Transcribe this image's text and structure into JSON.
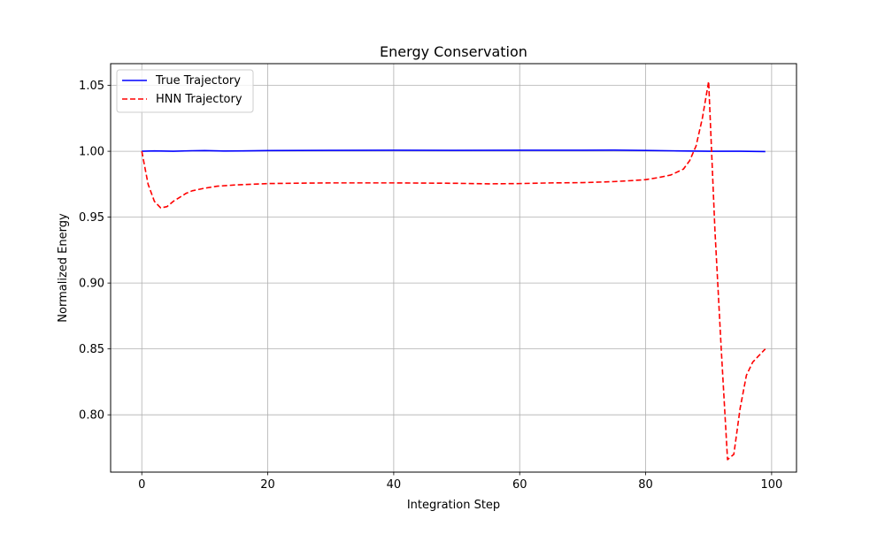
{
  "chart_data": {
    "type": "line",
    "title": "Energy Conservation",
    "xlabel": "Integration Step",
    "ylabel": "Normalized Energy",
    "xlim": [
      -4.95,
      103.95
    ],
    "ylim": [
      0.7565,
      1.0665
    ],
    "xticks": [
      0,
      20,
      40,
      60,
      80,
      100
    ],
    "xtick_labels": [
      "0",
      "20",
      "40",
      "60",
      "80",
      "100"
    ],
    "yticks": [
      0.8,
      0.85,
      0.9,
      0.95,
      1.0,
      1.05
    ],
    "ytick_labels": [
      "0.80",
      "0.85",
      "0.90",
      "0.95",
      "1.00",
      "1.05"
    ],
    "grid": true,
    "legend_position": "top-left",
    "series": [
      {
        "name": "True Trajectory",
        "color": "#0000ff",
        "style": "solid",
        "x": [
          0,
          2,
          5,
          8,
          10,
          13,
          16,
          20,
          30,
          40,
          50,
          60,
          70,
          75,
          80,
          85,
          90,
          95,
          99
        ],
        "y": [
          1.0,
          1.0003,
          1.0,
          1.0004,
          1.0005,
          1.0002,
          1.0003,
          1.0005,
          1.0007,
          1.0008,
          1.0007,
          1.0008,
          1.0008,
          1.0009,
          1.0006,
          1.0003,
          1.0,
          1.0,
          0.9998
        ]
      },
      {
        "name": "HNN Trajectory",
        "color": "#ff0000",
        "style": "dashed",
        "x": [
          0,
          1,
          2,
          3,
          4,
          5,
          6,
          7,
          8,
          10,
          12,
          15,
          20,
          25,
          30,
          40,
          50,
          55,
          60,
          65,
          70,
          75,
          78,
          80,
          82,
          84,
          86,
          87,
          88,
          89,
          90,
          91,
          92,
          93,
          94,
          95,
          96,
          97,
          98,
          99
        ],
        "y": [
          1.0,
          0.975,
          0.962,
          0.957,
          0.958,
          0.962,
          0.965,
          0.968,
          0.97,
          0.972,
          0.9735,
          0.9745,
          0.9755,
          0.9758,
          0.976,
          0.976,
          0.9757,
          0.9753,
          0.9755,
          0.976,
          0.9762,
          0.977,
          0.9778,
          0.9785,
          0.98,
          0.982,
          0.9865,
          0.993,
          1.004,
          1.025,
          1.053,
          0.94,
          0.85,
          0.766,
          0.77,
          0.805,
          0.83,
          0.84,
          0.845,
          0.85
        ]
      }
    ]
  }
}
